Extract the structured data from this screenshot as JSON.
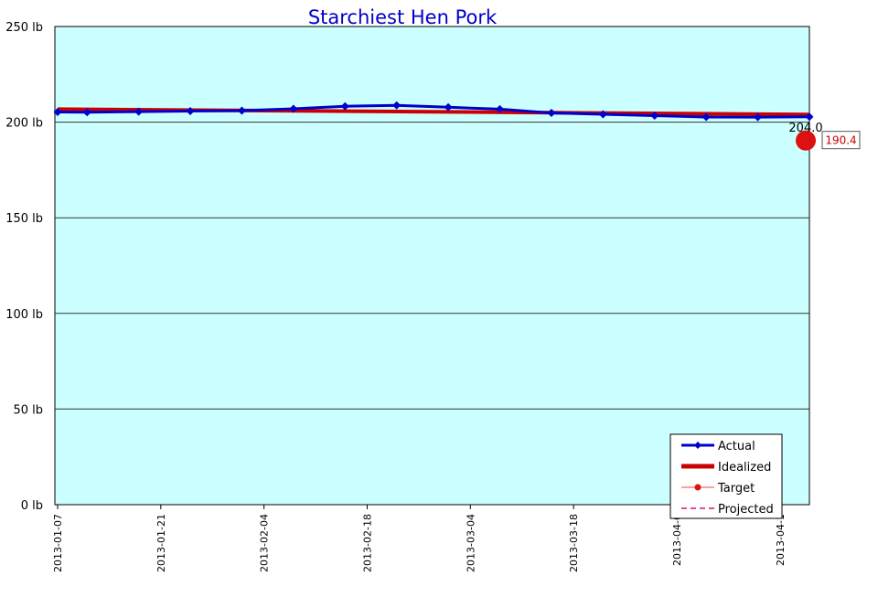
{
  "chart_data": {
    "type": "line",
    "title": "Starchiest Hen Pork",
    "xlabel": "",
    "ylabel": "",
    "x_tick_labels": [
      "2013-01-07",
      "2013-01-21",
      "2013-02-04",
      "2013-02-18",
      "2013-03-04",
      "2013-03-18",
      "2013-04-0",
      "2013-04-1"
    ],
    "y_tick_labels": [
      "0 lb",
      "50 lb",
      "100 lb",
      "150 lb",
      "200 lb",
      "250 lb"
    ],
    "ylim": [
      0,
      250
    ],
    "xlim": [
      "2013-01-07",
      "2013-04-19"
    ],
    "grid": true,
    "legend_position": "bottom-right",
    "background_color": "#ccffff",
    "series": [
      {
        "name": "Actual",
        "color": "#0000cc",
        "marker": "diamond",
        "x": [
          "2013-01-07",
          "2013-01-11",
          "2013-01-18",
          "2013-01-25",
          "2013-02-01",
          "2013-02-08",
          "2013-02-15",
          "2013-02-22",
          "2013-03-01",
          "2013-03-08",
          "2013-03-15",
          "2013-03-22",
          "2013-03-29",
          "2013-04-05",
          "2013-04-12",
          "2013-04-19"
        ],
        "values": [
          205.3,
          205.2,
          205.5,
          205.8,
          206.0,
          207.0,
          208.3,
          208.8,
          207.8,
          206.8,
          204.8,
          204.1,
          203.4,
          202.7,
          202.6,
          202.8
        ]
      },
      {
        "name": "Idealized",
        "color": "#cc0000",
        "x": [
          "2013-01-07",
          "2013-04-19"
        ],
        "values": [
          206.8,
          204.0
        ]
      },
      {
        "name": "Target",
        "color": "#ff8080",
        "x": [
          "2013-04-19"
        ],
        "values": [
          190.4
        ]
      },
      {
        "name": "Projected",
        "color": "#e0509a",
        "x": [],
        "values": []
      }
    ],
    "annotations": [
      {
        "text": "204.0",
        "x": "2013-04-19",
        "y": 204.0
      },
      {
        "text": "190.4",
        "x": "2013-04-19",
        "y": 190.4,
        "boxed": true,
        "color": "#cc0000"
      }
    ]
  }
}
